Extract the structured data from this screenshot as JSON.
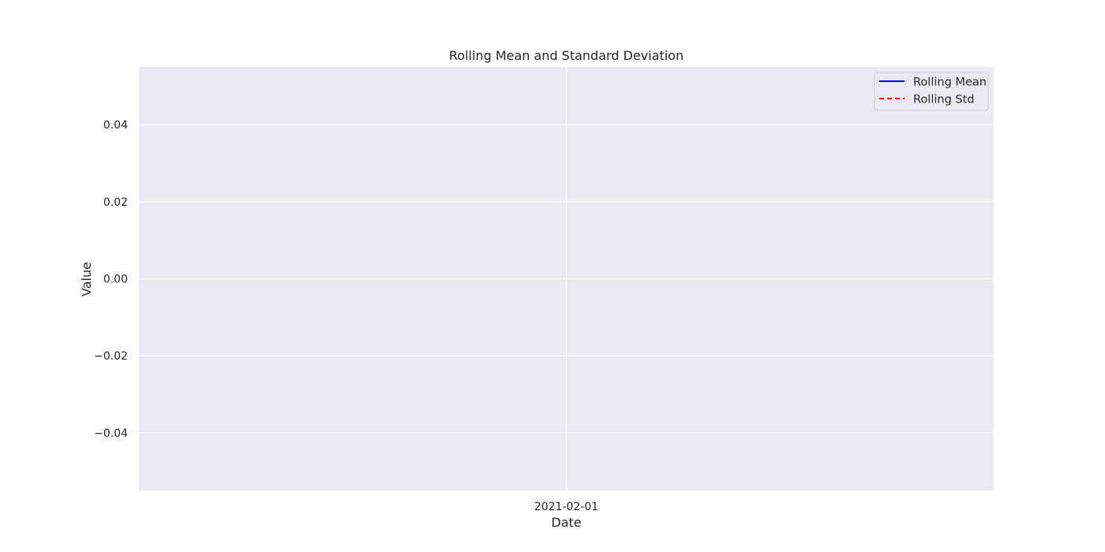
{
  "chart_data": {
    "type": "line",
    "title": "Rolling Mean and Standard Deviation",
    "xlabel": "Date",
    "ylabel": "Value",
    "x_ticks": [
      "2021-02-01"
    ],
    "y_ticks": [
      0.04,
      0.02,
      0.0,
      -0.02,
      -0.04
    ],
    "y_tick_labels": [
      "0.04",
      "0.02",
      "0.00",
      "−0.02",
      "−0.04"
    ],
    "ylim": [
      -0.055,
      0.055
    ],
    "grid": true,
    "legend_position": "top-right",
    "background_color": "#eaeaf2",
    "series": [
      {
        "name": "Rolling Mean",
        "color": "#0000ff",
        "linestyle": "solid",
        "values": []
      },
      {
        "name": "Rolling Std",
        "color": "#ff0000",
        "linestyle": "dashed",
        "values": []
      }
    ]
  }
}
